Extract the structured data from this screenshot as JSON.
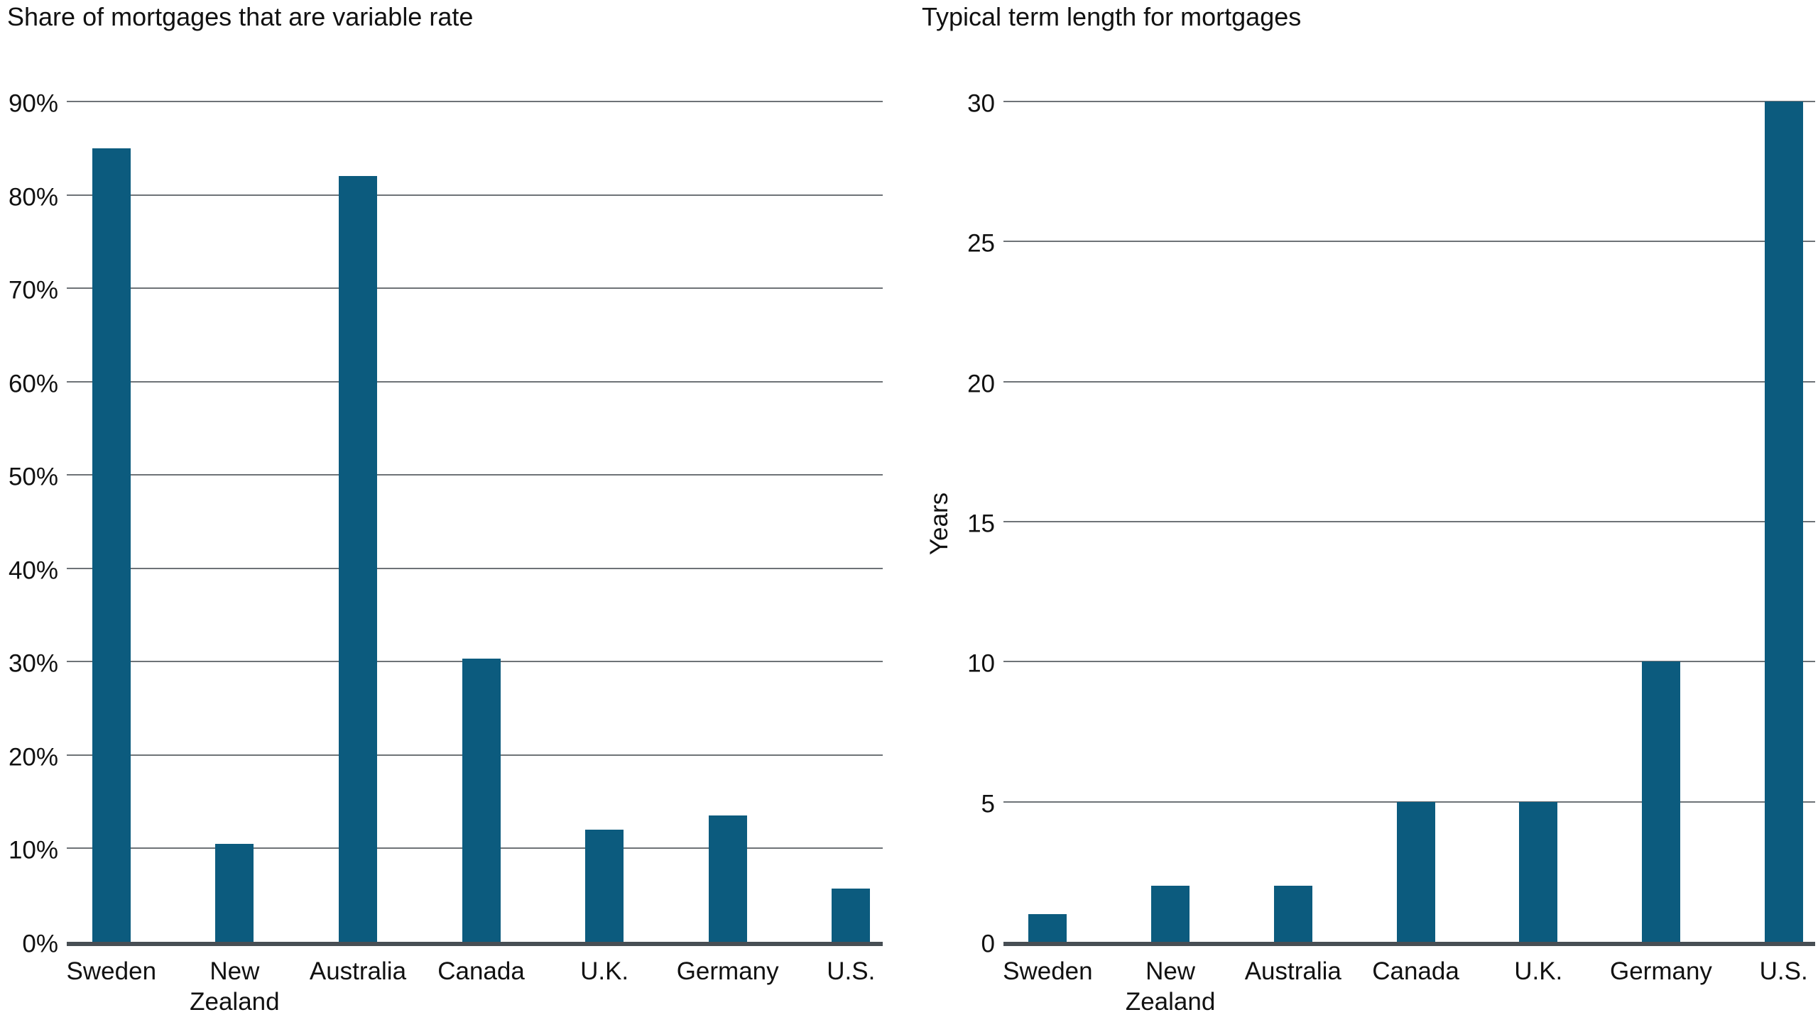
{
  "colors": {
    "bar": "#0c5b7e",
    "gridline": "#6e7377",
    "axis_line": "#474e54",
    "text": "#111111",
    "background": "#ffffff"
  },
  "chart_data": [
    {
      "type": "bar",
      "title": "Share of mortgages that are variable rate",
      "categories": [
        "Sweden",
        "New Zealand",
        "Australia",
        "Canada",
        "U.K.",
        "Germany",
        "U.S."
      ],
      "values": [
        85,
        10.5,
        82,
        30.3,
        12,
        13.5,
        5.7
      ],
      "unit": "%",
      "xlabel": "",
      "ylabel": "",
      "ylim": [
        0,
        90
      ],
      "yticks": [
        0,
        10,
        20,
        30,
        40,
        50,
        60,
        70,
        80,
        90
      ],
      "ytick_labels": [
        "0%",
        "10%",
        "20%",
        "30%",
        "40%",
        "50%",
        "60%",
        "70%",
        "80%",
        "90%"
      ],
      "grid": "horizontal",
      "legend": "none"
    },
    {
      "type": "bar",
      "title": "Typical term length for mortgages",
      "categories": [
        "Sweden",
        "New Zealand",
        "Australia",
        "Canada",
        "U.K.",
        "Germany",
        "U.S."
      ],
      "values": [
        1,
        2,
        2,
        5,
        5,
        10,
        30
      ],
      "unit": "years",
      "xlabel": "",
      "ylabel": "Years",
      "ylim": [
        0,
        30
      ],
      "yticks": [
        0,
        5,
        10,
        15,
        20,
        25,
        30
      ],
      "ytick_labels": [
        "0",
        "5",
        "10",
        "15",
        "20",
        "25",
        "30"
      ],
      "grid": "horizontal",
      "legend": "none"
    }
  ]
}
